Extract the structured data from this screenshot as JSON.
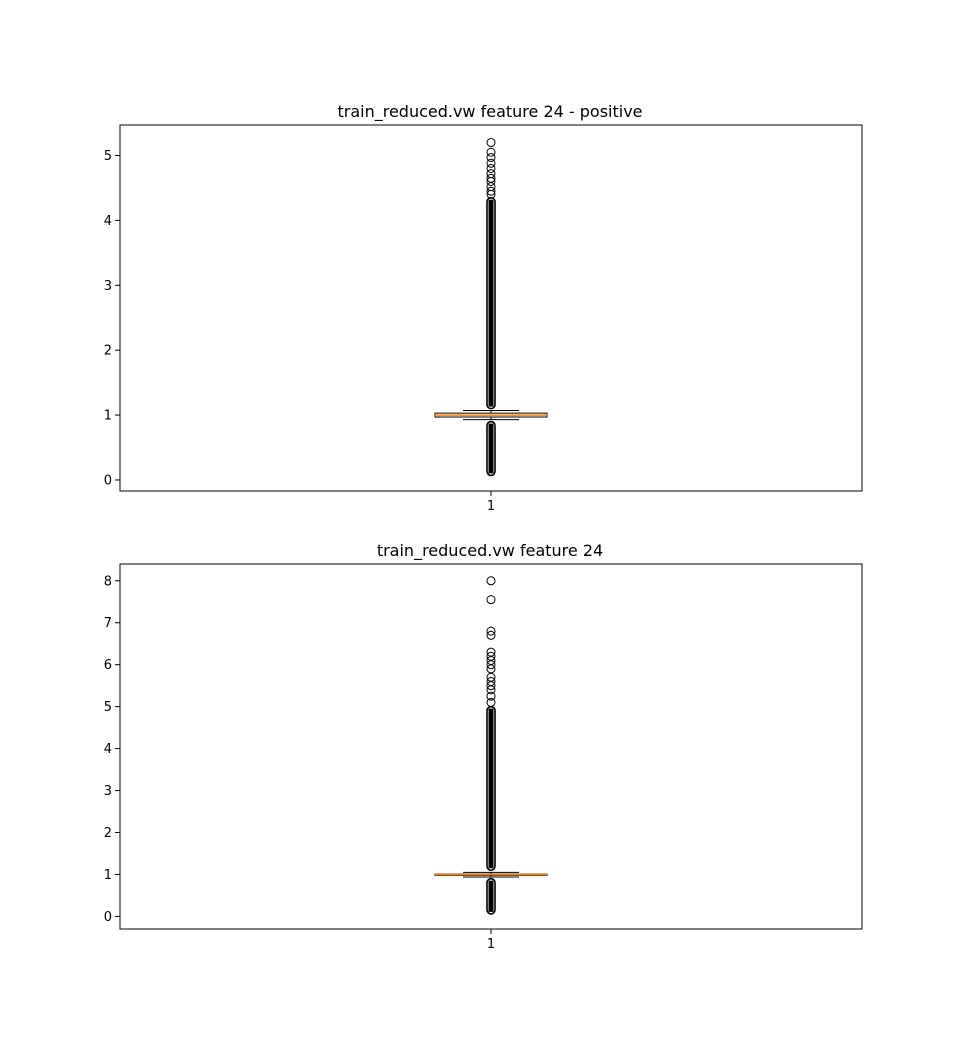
{
  "chart_data": [
    {
      "type": "boxplot",
      "title": "train_reduced.vw feature 24 - positive",
      "categories": [
        "1"
      ],
      "ylim": [
        -0.17,
        5.47
      ],
      "yticks": [
        0,
        1,
        2,
        3,
        4,
        5
      ],
      "grid": false,
      "box": {
        "whisker_low": 0.93,
        "q1": 0.97,
        "median": 1.0,
        "q3": 1.03,
        "whisker_high": 1.07
      },
      "outlier_bands": [
        [
          0.07,
          0.9
        ],
        [
          1.1,
          4.35
        ]
      ],
      "outliers": [
        4.4,
        4.45,
        4.52,
        4.6,
        4.65,
        4.72,
        4.8,
        4.88,
        4.97,
        5.05,
        5.2
      ]
    },
    {
      "type": "boxplot",
      "title": "train_reduced.vw feature 24",
      "categories": [
        "1"
      ],
      "ylim": [
        -0.3,
        8.4
      ],
      "yticks": [
        0,
        1,
        2,
        3,
        4,
        5,
        6,
        7,
        8
      ],
      "grid": false,
      "box": {
        "whisker_low": 0.94,
        "q1": 0.98,
        "median": 1.0,
        "q3": 1.01,
        "whisker_high": 1.05
      },
      "outlier_bands": [
        [
          0.06,
          0.9
        ],
        [
          1.1,
          5.0
        ]
      ],
      "outliers": [
        5.1,
        5.25,
        5.4,
        5.5,
        5.6,
        5.7,
        5.9,
        6.0,
        6.1,
        6.2,
        6.3,
        6.7,
        6.8,
        7.55,
        8.0
      ]
    }
  ]
}
